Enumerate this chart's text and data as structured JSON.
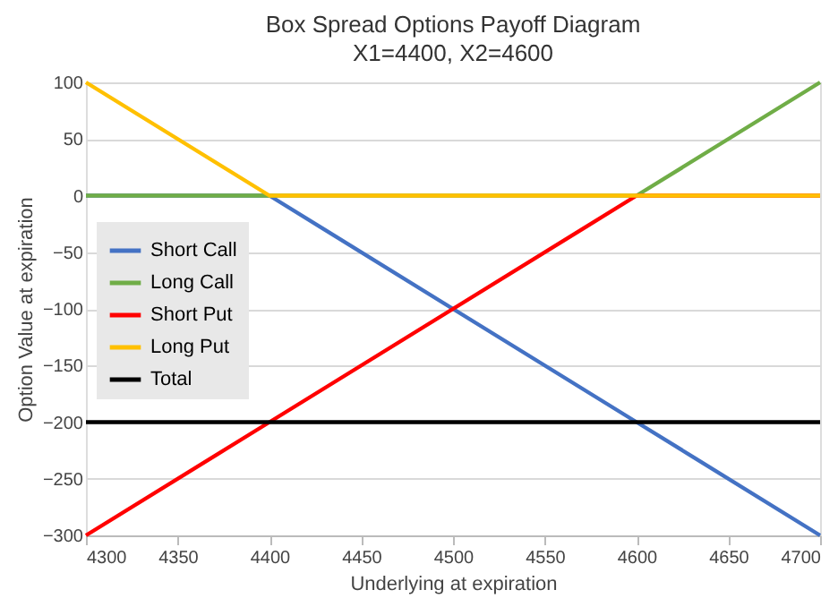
{
  "chart_data": {
    "type": "line",
    "title": "Box Spread Options Payoff Diagram",
    "subtitle": "X1=4400, X2=4600",
    "xlabel": "Underlying at expiration",
    "ylabel": "Option Value at expiration",
    "x": [
      4300,
      4400,
      4600,
      4700
    ],
    "series": [
      {
        "name": "Short Call",
        "color": "#4472c4",
        "values": [
          0,
          0,
          -200,
          -300
        ]
      },
      {
        "name": "Long Call",
        "color": "#70ad47",
        "values": [
          0,
          0,
          0,
          100
        ]
      },
      {
        "name": "Short Put",
        "color": "#ff0000",
        "values": [
          -300,
          -200,
          0,
          0
        ]
      },
      {
        "name": "Long Put",
        "color": "#ffc000",
        "values": [
          100,
          0,
          0,
          0
        ]
      },
      {
        "name": "Total",
        "color": "#000000",
        "values": [
          -200,
          -200,
          -200,
          -200
        ]
      }
    ],
    "xlim": [
      4300,
      4700
    ],
    "xticks": [
      4300,
      4350,
      4400,
      4450,
      4500,
      4550,
      4600,
      4650,
      4700
    ],
    "ylim": [
      -300,
      100
    ],
    "yticks": [
      -300,
      -250,
      -200,
      -150,
      -100,
      -50,
      0,
      50,
      100
    ],
    "grid": "y",
    "legend": "left",
    "marker": "none",
    "line_style": "solid"
  }
}
